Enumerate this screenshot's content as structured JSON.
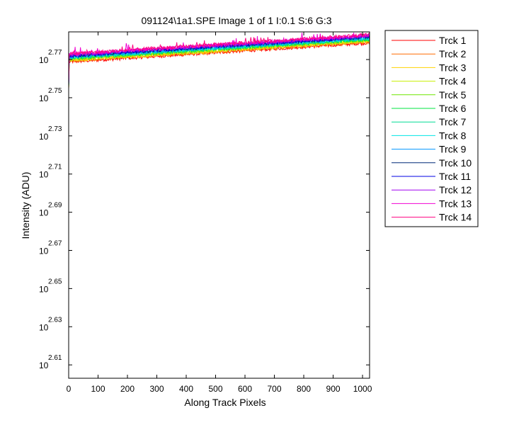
{
  "figure": {
    "background": "#ffffff"
  },
  "chart_data": {
    "type": "line",
    "title": "091124\\1a1.SPE  Image 1 of 1  I:0.1  S:6  G:3",
    "xlabel": "Along Track Pixels",
    "ylabel": "Intensity (ADU)",
    "xlim": [
      0,
      1024
    ],
    "ylim_log10": [
      2.603,
      2.7845
    ],
    "y_scale": "log",
    "x_ticks": [
      0,
      100,
      200,
      300,
      400,
      500,
      600,
      700,
      800,
      900,
      1000
    ],
    "y_ticks": [
      {
        "base": "10",
        "exp": "2.61",
        "log10": 2.61
      },
      {
        "base": "10",
        "exp": "2.63",
        "log10": 2.63
      },
      {
        "base": "10",
        "exp": "2.65",
        "log10": 2.65
      },
      {
        "base": "10",
        "exp": "2.67",
        "log10": 2.67
      },
      {
        "base": "10",
        "exp": "2.69",
        "log10": 2.69
      },
      {
        "base": "10",
        "exp": "2.71",
        "log10": 2.71
      },
      {
        "base": "10",
        "exp": "2.73",
        "log10": 2.73
      },
      {
        "base": "10",
        "exp": "2.75",
        "log10": 2.75
      },
      {
        "base": "10",
        "exp": "2.77",
        "log10": 2.77
      }
    ],
    "grid": false,
    "legend_position": "outside-right-top",
    "series": [
      {
        "name": "Trck 1",
        "color": "#ff0000",
        "y0_log10": 2.7688,
        "y1_log10": 2.7788
      },
      {
        "name": "Trck 2",
        "color": "#ff6a00",
        "y0_log10": 2.7692,
        "y1_log10": 2.7792
      },
      {
        "name": "Trck 3",
        "color": "#ffd200",
        "y0_log10": 2.7696,
        "y1_log10": 2.7796
      },
      {
        "name": "Trck 4",
        "color": "#c8f000",
        "y0_log10": 2.77,
        "y1_log10": 2.78
      },
      {
        "name": "Trck 5",
        "color": "#6ee600",
        "y0_log10": 2.7703,
        "y1_log10": 2.7803
      },
      {
        "name": "Trck 6",
        "color": "#00e640",
        "y0_log10": 2.7706,
        "y1_log10": 2.7806
      },
      {
        "name": "Trck 7",
        "color": "#00dc96",
        "y0_log10": 2.7709,
        "y1_log10": 2.7809
      },
      {
        "name": "Trck 8",
        "color": "#00e6e6",
        "y0_log10": 2.7712,
        "y1_log10": 2.7812
      },
      {
        "name": "Trck 9",
        "color": "#0096ff",
        "y0_log10": 2.7715,
        "y1_log10": 2.7815
      },
      {
        "name": "Trck 10",
        "color": "#002878",
        "y0_log10": 2.7718,
        "y1_log10": 2.7818
      },
      {
        "name": "Trck 11",
        "color": "#0000e6",
        "y0_log10": 2.7721,
        "y1_log10": 2.7821
      },
      {
        "name": "Trck 12",
        "color": "#a000f0",
        "y0_log10": 2.7724,
        "y1_log10": 2.7824
      },
      {
        "name": "Trck 13",
        "color": "#f000d2",
        "y0_log10": 2.7727,
        "y1_log10": 2.7827
      },
      {
        "name": "Trck 14",
        "color": "#ff0080",
        "y0_log10": 2.773,
        "y1_log10": 2.783
      }
    ]
  }
}
